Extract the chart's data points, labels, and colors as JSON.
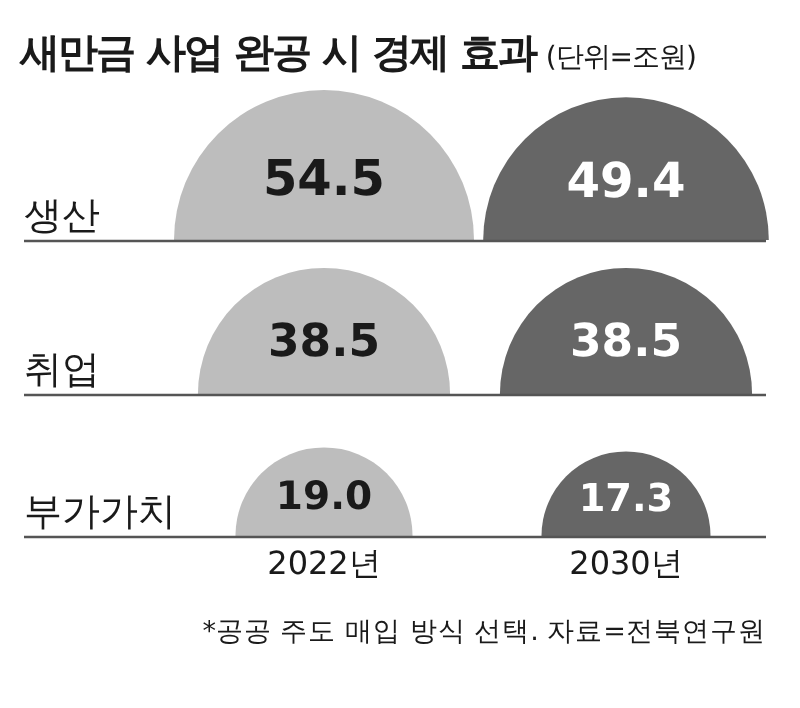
{
  "chart_data": {
    "type": "other",
    "title": "새만금 사업 완공 시 경제 효과",
    "subtitle": "(단위=조원)",
    "categories": [
      "생산",
      "취업",
      "부가가치"
    ],
    "series": [
      {
        "name": "2022년",
        "color": "#bdbdbd",
        "values": [
          54.5,
          38.5,
          19.0
        ],
        "value_labels": [
          "54.5",
          "38.5",
          "19.0"
        ]
      },
      {
        "name": "2030년",
        "color": "#666666",
        "values": [
          49.4,
          38.5,
          17.3
        ],
        "value_labels": [
          "49.4",
          "38.5",
          "17.3"
        ]
      }
    ],
    "annotations": [
      "*공공 주도 매입 방식 선택. 자료=전북연구원"
    ]
  }
}
